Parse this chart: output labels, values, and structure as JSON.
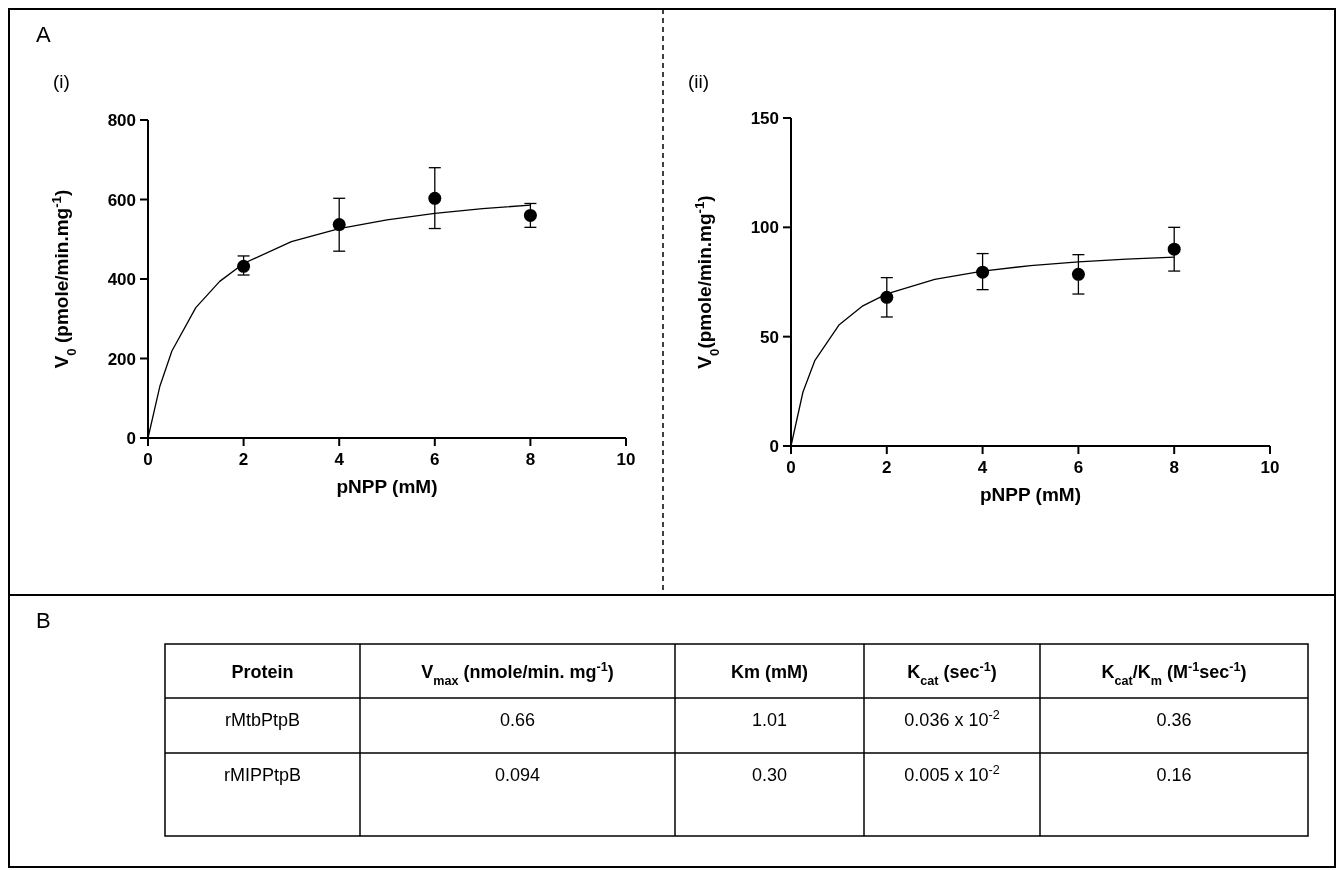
{
  "chart_data": [
    {
      "type": "scatter",
      "annotations": [
        "A",
        "(i)"
      ],
      "xlabel": "pNPP (mM)",
      "ylabel": "V$_{0}$ (pmole/min.mg$^{-1}$)",
      "xlim": [
        0,
        10
      ],
      "ylim": [
        0,
        800
      ],
      "xticks": [
        0,
        2,
        4,
        6,
        8,
        10
      ],
      "yticks": [
        0,
        200,
        400,
        600,
        800
      ],
      "grid": false,
      "series": [
        {
          "type": "line",
          "color": "#000000",
          "marker": "none",
          "x": [
            0,
            0.25,
            0.5,
            1,
            1.5,
            2,
            3,
            4,
            5,
            6,
            7,
            8
          ],
          "values": [
            0,
            131,
            219,
            328,
            394,
            439,
            494,
            527,
            549,
            565,
            577,
            586
          ]
        },
        {
          "type": "scatter",
          "color": "#000000",
          "marker": "circle",
          "x": [
            2,
            4,
            6,
            8
          ],
          "values": [
            432,
            537,
            603,
            560
          ],
          "errors": [
            [
              410,
              458
            ],
            [
              470,
              603
            ],
            [
              527,
              680
            ],
            [
              530,
              590
            ]
          ]
        }
      ]
    },
    {
      "type": "scatter",
      "annotations": [
        "(ii)"
      ],
      "xlabel": "pNPP (mM)",
      "ylabel": "V$_{0}$(pmole/min.mg$^{-1}$)",
      "xlim": [
        0,
        10
      ],
      "ylim": [
        0,
        150
      ],
      "xticks": [
        0,
        2,
        4,
        6,
        8,
        10
      ],
      "yticks": [
        0,
        50,
        100,
        150
      ],
      "grid": false,
      "series": [
        {
          "type": "line",
          "color": "#000000",
          "marker": "none",
          "x": [
            0,
            0.25,
            0.5,
            1,
            1.5,
            2,
            3,
            4,
            5,
            6,
            7,
            8
          ],
          "values": [
            0,
            24.7,
            39.2,
            55.3,
            64.1,
            69.6,
            76.2,
            80,
            82.5,
            84.2,
            85.5,
            86.4
          ]
        },
        {
          "type": "scatter",
          "color": "#000000",
          "marker": "circle",
          "x": [
            2,
            4,
            6,
            8
          ],
          "values": [
            68,
            79.5,
            78.5,
            90
          ],
          "errors": [
            [
              59,
              77
            ],
            [
              71.5,
              88
            ],
            [
              69.5,
              87.5
            ],
            [
              80,
              100
            ]
          ]
        }
      ]
    },
    {
      "type": "other",
      "annotations": [
        "B"
      ],
      "categories": [
        "Protein",
        "V$_{max}$ (nmole/min. mg$^{-1}$)",
        "Km (mM)",
        "K$_{cat}$ (sec$^{-1}$)",
        "K$_{cat}$/K$_{m}$ (M$^{-1}$sec$^{-1}$)"
      ],
      "cell_labels": [
        [
          "rMtbPtpB",
          "0.66",
          "1.01",
          "0.036 x 10$^{-2}$",
          "0.36"
        ],
        [
          "rMIPPtpB",
          "0.094",
          "0.30",
          "0.005 x 10$^{-2}$",
          "0.16"
        ]
      ]
    }
  ]
}
